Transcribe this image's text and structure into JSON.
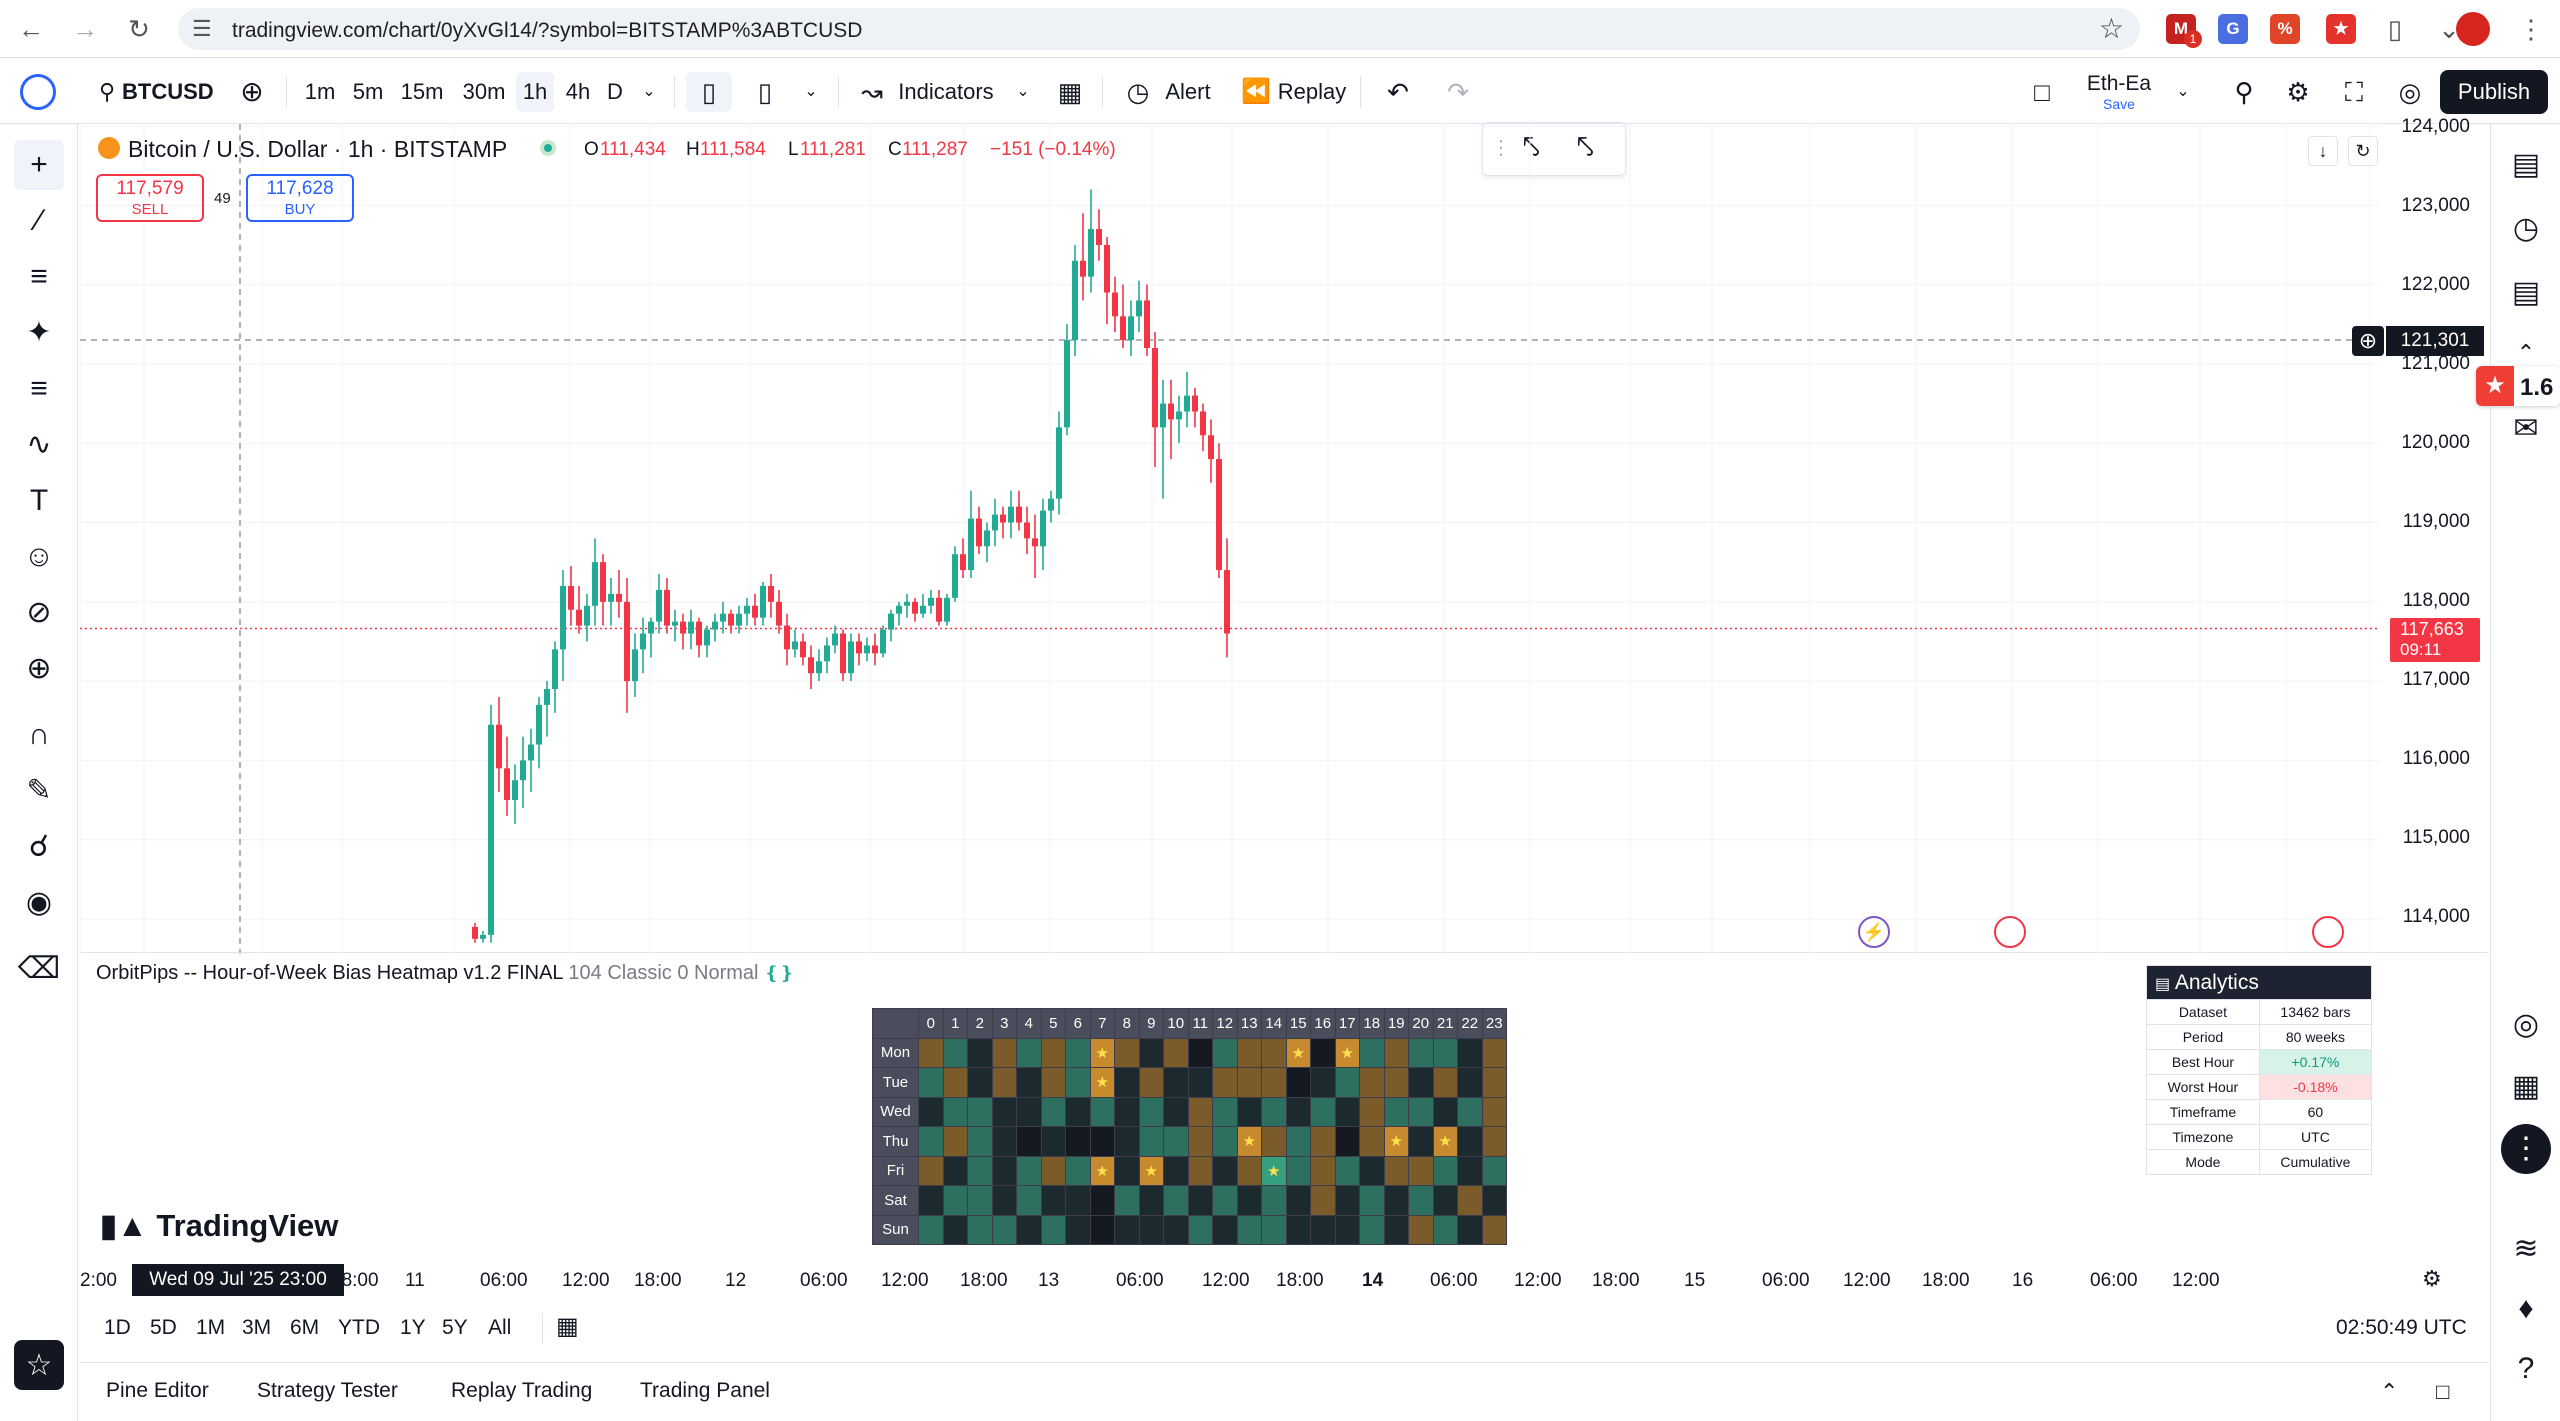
{
  "browser": {
    "url": "tradingview.com/chart/0yXvGl14/?symbol=BITSTAMP%3ABTCUSD",
    "ext_badge": "1"
  },
  "toolbar": {
    "symbol": "BTCUSD",
    "intervals": [
      "1m",
      "5m",
      "15m",
      "30m",
      "1h",
      "4h",
      "D"
    ],
    "selected_interval": "1h",
    "indicators": "Indicators",
    "alert": "Alert",
    "replay": "Replay",
    "layout_name": "Eth-Ea",
    "layout_save": "Save",
    "publish": "Publish"
  },
  "legend": {
    "title": "Bitcoin / U.S. Dollar · 1h · BITSTAMP",
    "o_label": "O",
    "o": "111,434",
    "h_label": "H",
    "h": "111,584",
    "l_label": "L",
    "l": "111,281",
    "c_label": "C",
    "c": "111,287",
    "change": "−151 (−0.14%)",
    "sell_price": "117,579",
    "sell_label": "SELL",
    "spread": "49",
    "buy_price": "117,628",
    "buy_label": "BUY"
  },
  "price_axis": {
    "ticks": [
      "124,000",
      "123,000",
      "122,000",
      "121,000",
      "120,000",
      "119,000",
      "118,000",
      "117,000",
      "116,000",
      "115,000",
      "114,000"
    ],
    "crosshair_price": "121,301",
    "last_price": "117,663",
    "countdown": "09:11"
  },
  "rating_badge": "1.6",
  "indicator": {
    "name": "OrbitPips -- Hour-of-Week Bias Heatmap v1.2 FINAL",
    "params": "104 Classic 0 Normal",
    "hours": [
      "0",
      "1",
      "2",
      "3",
      "4",
      "5",
      "6",
      "7",
      "8",
      "9",
      "10",
      "11",
      "12",
      "13",
      "14",
      "15",
      "16",
      "17",
      "18",
      "19",
      "20",
      "21",
      "22",
      "23"
    ],
    "days": [
      "Mon",
      "Tue",
      "Wed",
      "Thu",
      "Fri",
      "Sat",
      "Sun"
    ],
    "star": "★",
    "heatmap": [
      [
        "o",
        "g",
        "d",
        "o",
        "g",
        "o",
        "g",
        "s",
        "o",
        "d",
        "o",
        "k",
        "g",
        "o",
        "o",
        "s",
        "k",
        "s",
        "g",
        "o",
        "g",
        "g",
        "d",
        "o"
      ],
      [
        "g",
        "o",
        "d",
        "o",
        "d",
        "o",
        "g",
        "s",
        "d",
        "o",
        "d",
        "d",
        "o",
        "o",
        "o",
        "k",
        "d",
        "g",
        "o",
        "o",
        "d",
        "o",
        "d",
        "o"
      ],
      [
        "d",
        "g",
        "g",
        "d",
        "d",
        "g",
        "d",
        "g",
        "d",
        "g",
        "d",
        "o",
        "g",
        "d",
        "g",
        "d",
        "g",
        "d",
        "o",
        "g",
        "g",
        "d",
        "g",
        "o"
      ],
      [
        "g",
        "o",
        "g",
        "d",
        "k",
        "d",
        "k",
        "k",
        "d",
        "g",
        "g",
        "o",
        "g",
        "s",
        "o",
        "g",
        "o",
        "k",
        "o",
        "s",
        "d",
        "s",
        "d",
        "o"
      ],
      [
        "o",
        "d",
        "g",
        "d",
        "g",
        "o",
        "g",
        "s",
        "d",
        "s",
        "d",
        "o",
        "d",
        "o",
        "s",
        "g",
        "o",
        "g",
        "d",
        "o",
        "o",
        "g",
        "d",
        "g"
      ],
      [
        "d",
        "g",
        "g",
        "d",
        "g",
        "d",
        "d",
        "k",
        "g",
        "d",
        "g",
        "d",
        "g",
        "d",
        "g",
        "d",
        "o",
        "d",
        "g",
        "d",
        "g",
        "d",
        "o",
        "d"
      ],
      [
        "g",
        "d",
        "g",
        "g",
        "d",
        "g",
        "d",
        "k",
        "d",
        "d",
        "d",
        "g",
        "d",
        "g",
        "g",
        "d",
        "d",
        "d",
        "g",
        "d",
        "o",
        "g",
        "d",
        "o"
      ]
    ],
    "analytics_title": "Analytics",
    "analytics": [
      [
        "Dataset",
        "13462 bars"
      ],
      [
        "Period",
        "80 weeks"
      ],
      [
        "Best Hour",
        "+0.17%"
      ],
      [
        "Worst Hour",
        "-0.18%"
      ],
      [
        "Timeframe",
        "60"
      ],
      [
        "Timezone",
        "UTC"
      ],
      [
        "Mode",
        "Cumulative"
      ]
    ]
  },
  "brand": "TradingView",
  "time_axis": {
    "ticks": [
      "2:00",
      "12:00",
      "18:00",
      "11",
      "06:00",
      "12:00",
      "18:00",
      "12",
      "06:00",
      "12:00",
      "18:00",
      "13",
      "06:00",
      "12:00",
      "18:00",
      "14",
      "06:00",
      "12:00",
      "18:00",
      "15",
      "06:00",
      "12:00",
      "18:00",
      "16",
      "06:00",
      "12:00"
    ],
    "crosshair_label": "Wed 09 Jul '25   23:00"
  },
  "ranges": [
    "1D",
    "5D",
    "1M",
    "3M",
    "6M",
    "YTD",
    "1Y",
    "5Y",
    "All"
  ],
  "clock": "02:50:49 UTC",
  "bottom_tabs": [
    "Pine Editor",
    "Strategy Tester",
    "Replay Trading",
    "Trading Panel"
  ],
  "chart_data": {
    "type": "candlestick",
    "symbol": "BTCUSD",
    "interval": "1h",
    "ylim": [
      113600,
      124100
    ],
    "candles": [
      [
        113900,
        113950,
        113700,
        113750
      ],
      [
        113750,
        113850,
        113700,
        113800
      ],
      [
        113800,
        116700,
        113700,
        116450
      ],
      [
        116450,
        116800,
        115600,
        115900
      ],
      [
        115900,
        116300,
        115300,
        115500
      ],
      [
        115500,
        115950,
        115200,
        115750
      ],
      [
        115750,
        116300,
        115400,
        116000
      ],
      [
        116000,
        116400,
        115600,
        116200
      ],
      [
        116200,
        116800,
        115900,
        116700
      ],
      [
        116700,
        117000,
        116300,
        116900
      ],
      [
        116900,
        117500,
        116600,
        117400
      ],
      [
        117400,
        118400,
        117000,
        118200
      ],
      [
        118200,
        118450,
        117700,
        117900
      ],
      [
        117900,
        118200,
        117600,
        117700
      ],
      [
        117700,
        118100,
        117500,
        117950
      ],
      [
        117950,
        118800,
        117700,
        118500
      ],
      [
        118500,
        118600,
        117700,
        118000
      ],
      [
        118000,
        118300,
        117700,
        118100
      ],
      [
        118100,
        118400,
        117800,
        118000
      ],
      [
        118000,
        118300,
        116600,
        117000
      ],
      [
        117000,
        117600,
        116800,
        117400
      ],
      [
        117400,
        117800,
        117100,
        117600
      ],
      [
        117600,
        117800,
        117300,
        117750
      ],
      [
        117750,
        118350,
        117600,
        118150
      ],
      [
        118150,
        118300,
        117600,
        117700
      ],
      [
        117700,
        117900,
        117500,
        117750
      ],
      [
        117750,
        117850,
        117400,
        117600
      ],
      [
        117600,
        117900,
        117400,
        117750
      ],
      [
        117750,
        117800,
        117300,
        117450
      ],
      [
        117450,
        117700,
        117300,
        117650
      ],
      [
        117650,
        117850,
        117500,
        117750
      ],
      [
        117750,
        118000,
        117600,
        117850
      ],
      [
        117850,
        117900,
        117600,
        117700
      ],
      [
        117700,
        117950,
        117600,
        117850
      ],
      [
        117850,
        118050,
        117700,
        117950
      ],
      [
        117950,
        118100,
        117700,
        117800
      ],
      [
        117800,
        118250,
        117700,
        118200
      ],
      [
        118200,
        118350,
        117800,
        118000
      ],
      [
        118000,
        118150,
        117600,
        117700
      ],
      [
        117700,
        117850,
        117200,
        117400
      ],
      [
        117400,
        117650,
        117300,
        117500
      ],
      [
        117500,
        117600,
        117200,
        117300
      ],
      [
        117300,
        117450,
        116900,
        117100
      ],
      [
        117100,
        117400,
        117000,
        117250
      ],
      [
        117250,
        117550,
        117100,
        117450
      ],
      [
        117450,
        117700,
        117350,
        117600
      ],
      [
        117600,
        117650,
        117000,
        117100
      ],
      [
        117100,
        117600,
        117000,
        117500
      ],
      [
        117500,
        117600,
        117200,
        117350
      ],
      [
        117350,
        117550,
        117250,
        117450
      ],
      [
        117450,
        117600,
        117200,
        117350
      ],
      [
        117350,
        117700,
        117300,
        117650
      ],
      [
        117650,
        117900,
        117500,
        117850
      ],
      [
        117850,
        118000,
        117700,
        117950
      ],
      [
        117950,
        118100,
        117800,
        118000
      ],
      [
        118000,
        118050,
        117750,
        117850
      ],
      [
        117850,
        118100,
        117800,
        117950
      ],
      [
        117950,
        118150,
        117850,
        118050
      ],
      [
        118050,
        118150,
        117700,
        117750
      ],
      [
        117750,
        118100,
        117700,
        118050
      ],
      [
        118050,
        118700,
        118000,
        118600
      ],
      [
        118600,
        118800,
        118300,
        118400
      ],
      [
        118400,
        119400,
        118300,
        119050
      ],
      [
        119050,
        119200,
        118600,
        118700
      ],
      [
        118700,
        119000,
        118500,
        118900
      ],
      [
        118900,
        119300,
        118700,
        119100
      ],
      [
        119100,
        119200,
        118800,
        119000
      ],
      [
        119000,
        119400,
        118800,
        119200
      ],
      [
        119200,
        119400,
        118900,
        119000
      ],
      [
        119000,
        119200,
        118600,
        118800
      ],
      [
        118800,
        119100,
        118300,
        118700
      ],
      [
        118700,
        119300,
        118400,
        119150
      ],
      [
        119150,
        119400,
        119000,
        119300
      ],
      [
        119300,
        120400,
        119100,
        120200
      ],
      [
        120200,
        121500,
        120100,
        121300
      ],
      [
        121300,
        122500,
        121100,
        122300
      ],
      [
        122300,
        122900,
        121800,
        122100
      ],
      [
        122100,
        123200,
        121900,
        122700
      ],
      [
        122700,
        122950,
        122300,
        122500
      ],
      [
        122500,
        122600,
        121500,
        121900
      ],
      [
        121900,
        122100,
        121400,
        121600
      ],
      [
        121600,
        122000,
        121200,
        121300
      ],
      [
        121300,
        121800,
        121100,
        121600
      ],
      [
        121600,
        122050,
        121400,
        121800
      ],
      [
        121800,
        122000,
        121100,
        121200
      ],
      [
        121200,
        121400,
        119700,
        120200
      ],
      [
        120200,
        120800,
        119300,
        120500
      ],
      [
        120500,
        120800,
        119800,
        120300
      ],
      [
        120300,
        120600,
        120000,
        120400
      ],
      [
        120400,
        120900,
        120200,
        120600
      ],
      [
        120600,
        120700,
        120200,
        120400
      ],
      [
        120400,
        120500,
        119900,
        120100
      ],
      [
        120100,
        120300,
        119500,
        119800
      ],
      [
        119800,
        120000,
        118300,
        118400
      ],
      [
        118400,
        118800,
        117300,
        117600
      ]
    ],
    "sell": 117579,
    "buy": 117628,
    "last_price": 117663,
    "crosshair_price": 121301
  }
}
